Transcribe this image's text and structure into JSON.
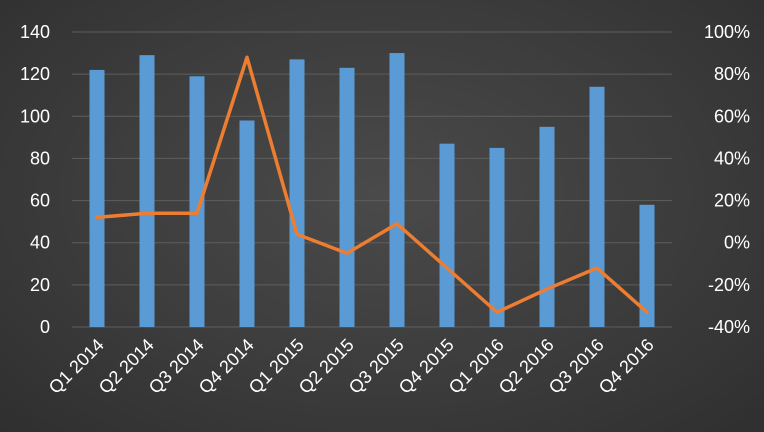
{
  "chart_data": {
    "type": "bar",
    "categories": [
      "Q1 2014",
      "Q2 2014",
      "Q3 2014",
      "Q4 2014",
      "Q1 2015",
      "Q2 2015",
      "Q3 2015",
      "Q4 2015",
      "Q1 2016",
      "Q2 2016",
      "Q3 2016",
      "Q4 2016"
    ],
    "series": [
      {
        "type": "bar",
        "axis": "left",
        "color": "#5b9bd5",
        "values": [
          122,
          129,
          119,
          98,
          127,
          123,
          130,
          87,
          85,
          95,
          114,
          58
        ]
      },
      {
        "type": "line",
        "axis": "right",
        "color": "#ed7d31",
        "values": [
          12,
          14,
          14,
          88,
          4,
          -5,
          9,
          -12,
          -33,
          -22,
          -12,
          -33
        ]
      }
    ],
    "y_left": {
      "min": 0,
      "max": 140,
      "step": 20,
      "ticks": [
        "0",
        "20",
        "40",
        "60",
        "80",
        "100",
        "120",
        "140"
      ]
    },
    "y_right": {
      "min": -40,
      "max": 100,
      "step": 20,
      "ticks": [
        "-40%",
        "-20%",
        "0%",
        "20%",
        "40%",
        "60%",
        "80%",
        "100%"
      ]
    },
    "grid": true,
    "title": "",
    "xlabel": "",
    "ylabel": ""
  }
}
